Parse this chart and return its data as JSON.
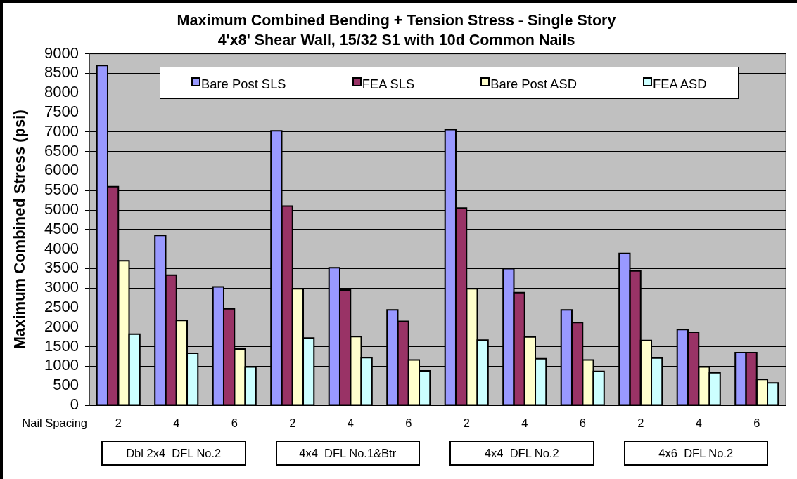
{
  "chart_data": {
    "type": "bar",
    "title": "Maximum Combined Bending + Tension Stress - Single Story",
    "subtitle": "4'x8' Shear Wall, 15/32 S1 with 10d Common Nails",
    "xlabel": "Nail Spacing",
    "ylabel": "Maximum Combined Stress (psi)",
    "categories": [
      "2",
      "4",
      "6",
      "2",
      "4",
      "6",
      "2",
      "4",
      "6",
      "2",
      "4",
      "6"
    ],
    "series": [
      {
        "name": "Bare Post SLS",
        "color": "#9999ff",
        "values": [
          8700,
          4350,
          3030,
          7030,
          3520,
          2440,
          7060,
          3500,
          2440,
          3890,
          1940,
          1350
        ]
      },
      {
        "name": "FEA SLS",
        "color": "#993366",
        "values": [
          5600,
          3330,
          2470,
          5100,
          2950,
          2150,
          5050,
          2880,
          2120,
          3440,
          1870,
          1350
        ]
      },
      {
        "name": "Bare Post ASD",
        "color": "#ffffcc",
        "values": [
          3700,
          2170,
          1440,
          2980,
          1760,
          1160,
          2980,
          1750,
          1160,
          1660,
          980,
          660
        ]
      },
      {
        "name": "FEA ASD",
        "color": "#ccffff",
        "values": [
          1820,
          1330,
          980,
          1720,
          1220,
          880,
          1670,
          1190,
          870,
          1210,
          830,
          570
        ]
      }
    ],
    "ylim": [
      0,
      9000
    ],
    "yticks": [
      0,
      500,
      1000,
      1500,
      2000,
      2500,
      3000,
      3500,
      4000,
      4500,
      5000,
      5500,
      6000,
      6500,
      7000,
      7500,
      8000,
      8500,
      9000
    ],
    "grid": "y",
    "legend": "top",
    "annotations": [
      "Dbl 2x4  DFL No.2",
      "4x4  DFL No.1&Btr",
      "4x4  DFL No.2",
      "4x6  DFL No.2"
    ]
  }
}
